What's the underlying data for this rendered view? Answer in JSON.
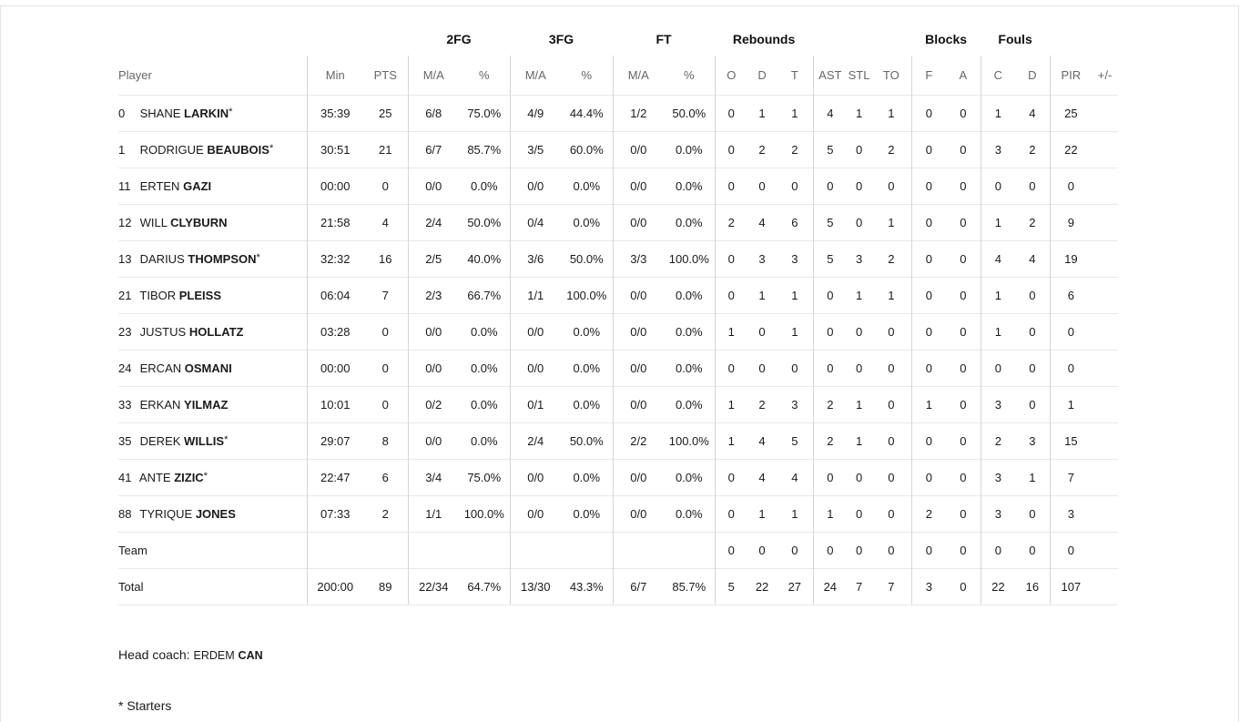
{
  "groups": {
    "fg2": "2FG",
    "fg3": "3FG",
    "ft": "FT",
    "rebounds": "Rebounds",
    "blocks": "Blocks",
    "fouls": "Fouls"
  },
  "headers": {
    "player": "Player",
    "min": "Min",
    "pts": "PTS",
    "fg2_ma": "M/A",
    "fg2_pct": "%",
    "fg3_ma": "M/A",
    "fg3_pct": "%",
    "ft_ma": "M/A",
    "ft_pct": "%",
    "reb_o": "O",
    "reb_d": "D",
    "reb_t": "T",
    "ast": "AST",
    "stl": "STL",
    "to": "TO",
    "blk_f": "F",
    "blk_a": "A",
    "foul_c": "C",
    "foul_d": "D",
    "pir": "PIR",
    "pm": "+/-"
  },
  "players": [
    {
      "num": "0",
      "first": "SHANE",
      "last": "LARKIN",
      "star": "*",
      "min": "35:39",
      "pts": "25",
      "fg2_ma": "6/8",
      "fg2_pct": "75.0%",
      "fg3_ma": "4/9",
      "fg3_pct": "44.4%",
      "ft_ma": "1/2",
      "ft_pct": "50.0%",
      "reb_o": "0",
      "reb_d": "1",
      "reb_t": "1",
      "ast": "4",
      "stl": "1",
      "to": "1",
      "blk_f": "0",
      "blk_a": "0",
      "foul_c": "1",
      "foul_d": "4",
      "pir": "25",
      "pm": ""
    },
    {
      "num": "1",
      "first": "RODRIGUE",
      "last": "BEAUBOIS",
      "star": "*",
      "min": "30:51",
      "pts": "21",
      "fg2_ma": "6/7",
      "fg2_pct": "85.7%",
      "fg3_ma": "3/5",
      "fg3_pct": "60.0%",
      "ft_ma": "0/0",
      "ft_pct": "0.0%",
      "reb_o": "0",
      "reb_d": "2",
      "reb_t": "2",
      "ast": "5",
      "stl": "0",
      "to": "2",
      "blk_f": "0",
      "blk_a": "0",
      "foul_c": "3",
      "foul_d": "2",
      "pir": "22",
      "pm": ""
    },
    {
      "num": "11",
      "first": "ERTEN",
      "last": "GAZI",
      "star": "",
      "min": "00:00",
      "pts": "0",
      "fg2_ma": "0/0",
      "fg2_pct": "0.0%",
      "fg3_ma": "0/0",
      "fg3_pct": "0.0%",
      "ft_ma": "0/0",
      "ft_pct": "0.0%",
      "reb_o": "0",
      "reb_d": "0",
      "reb_t": "0",
      "ast": "0",
      "stl": "0",
      "to": "0",
      "blk_f": "0",
      "blk_a": "0",
      "foul_c": "0",
      "foul_d": "0",
      "pir": "0",
      "pm": ""
    },
    {
      "num": "12",
      "first": "WILL",
      "last": "CLYBURN",
      "star": "",
      "min": "21:58",
      "pts": "4",
      "fg2_ma": "2/4",
      "fg2_pct": "50.0%",
      "fg3_ma": "0/4",
      "fg3_pct": "0.0%",
      "ft_ma": "0/0",
      "ft_pct": "0.0%",
      "reb_o": "2",
      "reb_d": "4",
      "reb_t": "6",
      "ast": "5",
      "stl": "0",
      "to": "1",
      "blk_f": "0",
      "blk_a": "0",
      "foul_c": "1",
      "foul_d": "2",
      "pir": "9",
      "pm": ""
    },
    {
      "num": "13",
      "first": "DARIUS",
      "last": "THOMPSON",
      "star": "*",
      "min": "32:32",
      "pts": "16",
      "fg2_ma": "2/5",
      "fg2_pct": "40.0%",
      "fg3_ma": "3/6",
      "fg3_pct": "50.0%",
      "ft_ma": "3/3",
      "ft_pct": "100.0%",
      "reb_o": "0",
      "reb_d": "3",
      "reb_t": "3",
      "ast": "5",
      "stl": "3",
      "to": "2",
      "blk_f": "0",
      "blk_a": "0",
      "foul_c": "4",
      "foul_d": "4",
      "pir": "19",
      "pm": ""
    },
    {
      "num": "21",
      "first": "TIBOR",
      "last": "PLEISS",
      "star": "",
      "min": "06:04",
      "pts": "7",
      "fg2_ma": "2/3",
      "fg2_pct": "66.7%",
      "fg3_ma": "1/1",
      "fg3_pct": "100.0%",
      "ft_ma": "0/0",
      "ft_pct": "0.0%",
      "reb_o": "0",
      "reb_d": "1",
      "reb_t": "1",
      "ast": "0",
      "stl": "1",
      "to": "1",
      "blk_f": "0",
      "blk_a": "0",
      "foul_c": "1",
      "foul_d": "0",
      "pir": "6",
      "pm": ""
    },
    {
      "num": "23",
      "first": "JUSTUS",
      "last": "HOLLATZ",
      "star": "",
      "min": "03:28",
      "pts": "0",
      "fg2_ma": "0/0",
      "fg2_pct": "0.0%",
      "fg3_ma": "0/0",
      "fg3_pct": "0.0%",
      "ft_ma": "0/0",
      "ft_pct": "0.0%",
      "reb_o": "1",
      "reb_d": "0",
      "reb_t": "1",
      "ast": "0",
      "stl": "0",
      "to": "0",
      "blk_f": "0",
      "blk_a": "0",
      "foul_c": "1",
      "foul_d": "0",
      "pir": "0",
      "pm": ""
    },
    {
      "num": "24",
      "first": "ERCAN",
      "last": "OSMANI",
      "star": "",
      "min": "00:00",
      "pts": "0",
      "fg2_ma": "0/0",
      "fg2_pct": "0.0%",
      "fg3_ma": "0/0",
      "fg3_pct": "0.0%",
      "ft_ma": "0/0",
      "ft_pct": "0.0%",
      "reb_o": "0",
      "reb_d": "0",
      "reb_t": "0",
      "ast": "0",
      "stl": "0",
      "to": "0",
      "blk_f": "0",
      "blk_a": "0",
      "foul_c": "0",
      "foul_d": "0",
      "pir": "0",
      "pm": ""
    },
    {
      "num": "33",
      "first": "ERKAN",
      "last": "YILMAZ",
      "star": "",
      "min": "10:01",
      "pts": "0",
      "fg2_ma": "0/2",
      "fg2_pct": "0.0%",
      "fg3_ma": "0/1",
      "fg3_pct": "0.0%",
      "ft_ma": "0/0",
      "ft_pct": "0.0%",
      "reb_o": "1",
      "reb_d": "2",
      "reb_t": "3",
      "ast": "2",
      "stl": "1",
      "to": "0",
      "blk_f": "1",
      "blk_a": "0",
      "foul_c": "3",
      "foul_d": "0",
      "pir": "1",
      "pm": ""
    },
    {
      "num": "35",
      "first": "DEREK",
      "last": "WILLIS",
      "star": "*",
      "min": "29:07",
      "pts": "8",
      "fg2_ma": "0/0",
      "fg2_pct": "0.0%",
      "fg3_ma": "2/4",
      "fg3_pct": "50.0%",
      "ft_ma": "2/2",
      "ft_pct": "100.0%",
      "reb_o": "1",
      "reb_d": "4",
      "reb_t": "5",
      "ast": "2",
      "stl": "1",
      "to": "0",
      "blk_f": "0",
      "blk_a": "0",
      "foul_c": "2",
      "foul_d": "3",
      "pir": "15",
      "pm": ""
    },
    {
      "num": "41",
      "first": "ANTE",
      "last": "ZIZIC",
      "star": "*",
      "min": "22:47",
      "pts": "6",
      "fg2_ma": "3/4",
      "fg2_pct": "75.0%",
      "fg3_ma": "0/0",
      "fg3_pct": "0.0%",
      "ft_ma": "0/0",
      "ft_pct": "0.0%",
      "reb_o": "0",
      "reb_d": "4",
      "reb_t": "4",
      "ast": "0",
      "stl": "0",
      "to": "0",
      "blk_f": "0",
      "blk_a": "0",
      "foul_c": "3",
      "foul_d": "1",
      "pir": "7",
      "pm": ""
    },
    {
      "num": "88",
      "first": "TYRIQUE",
      "last": "JONES",
      "star": "",
      "min": "07:33",
      "pts": "2",
      "fg2_ma": "1/1",
      "fg2_pct": "100.0%",
      "fg3_ma": "0/0",
      "fg3_pct": "0.0%",
      "ft_ma": "0/0",
      "ft_pct": "0.0%",
      "reb_o": "0",
      "reb_d": "1",
      "reb_t": "1",
      "ast": "1",
      "stl": "0",
      "to": "0",
      "blk_f": "2",
      "blk_a": "0",
      "foul_c": "3",
      "foul_d": "0",
      "pir": "3",
      "pm": ""
    }
  ],
  "team": {
    "label": "Team",
    "reb_o": "0",
    "reb_d": "0",
    "reb_t": "0",
    "ast": "0",
    "stl": "0",
    "to": "0",
    "blk_f": "0",
    "blk_a": "0",
    "foul_c": "0",
    "foul_d": "0",
    "pir": "0"
  },
  "total": {
    "label": "Total",
    "min": "200:00",
    "pts": "89",
    "fg2_ma": "22/34",
    "fg2_pct": "64.7%",
    "fg3_ma": "13/30",
    "fg3_pct": "43.3%",
    "ft_ma": "6/7",
    "ft_pct": "85.7%",
    "reb_o": "5",
    "reb_d": "22",
    "reb_t": "27",
    "ast": "24",
    "stl": "7",
    "to": "7",
    "blk_f": "3",
    "blk_a": "0",
    "foul_c": "22",
    "foul_d": "16",
    "pir": "107"
  },
  "coach": {
    "label": "Head coach: ",
    "first": "ERDEM",
    "last": "CAN"
  },
  "footnote": "* Starters"
}
